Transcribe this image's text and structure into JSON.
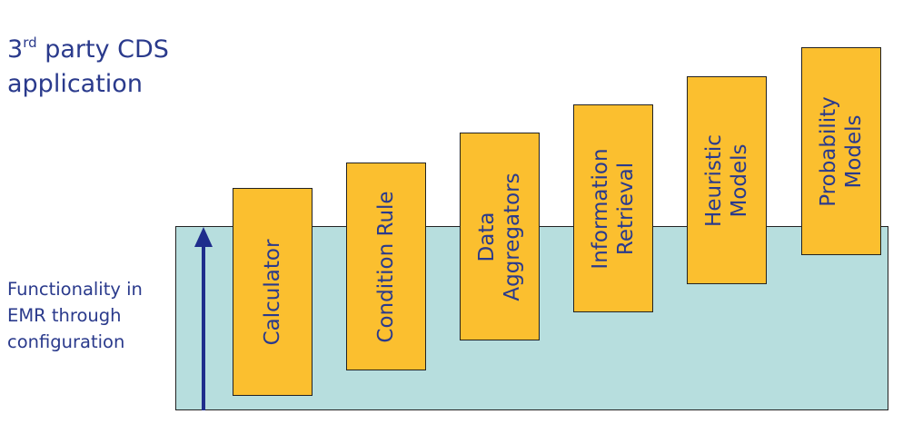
{
  "title": {
    "prefix": "3",
    "superscript": "rd",
    "line1_rest": " party CDS",
    "line2": "application"
  },
  "side_label": {
    "lines": [
      "Functionality in",
      "EMR through",
      "configuration"
    ]
  },
  "boxes": [
    {
      "lines": [
        "Calculator"
      ]
    },
    {
      "lines": [
        "Condition Rule"
      ]
    },
    {
      "lines": [
        "Data",
        "Aggregators"
      ]
    },
    {
      "lines": [
        "Information",
        "Retrieval"
      ]
    },
    {
      "lines": [
        "Heuristic",
        "Models"
      ]
    },
    {
      "lines": [
        "Probability",
        "Models"
      ]
    }
  ],
  "colors": {
    "text": "#2a3a8c",
    "box_fill": "#fbbf2f",
    "platform_fill": "#b7dede",
    "arrow": "#1f2d8c"
  }
}
